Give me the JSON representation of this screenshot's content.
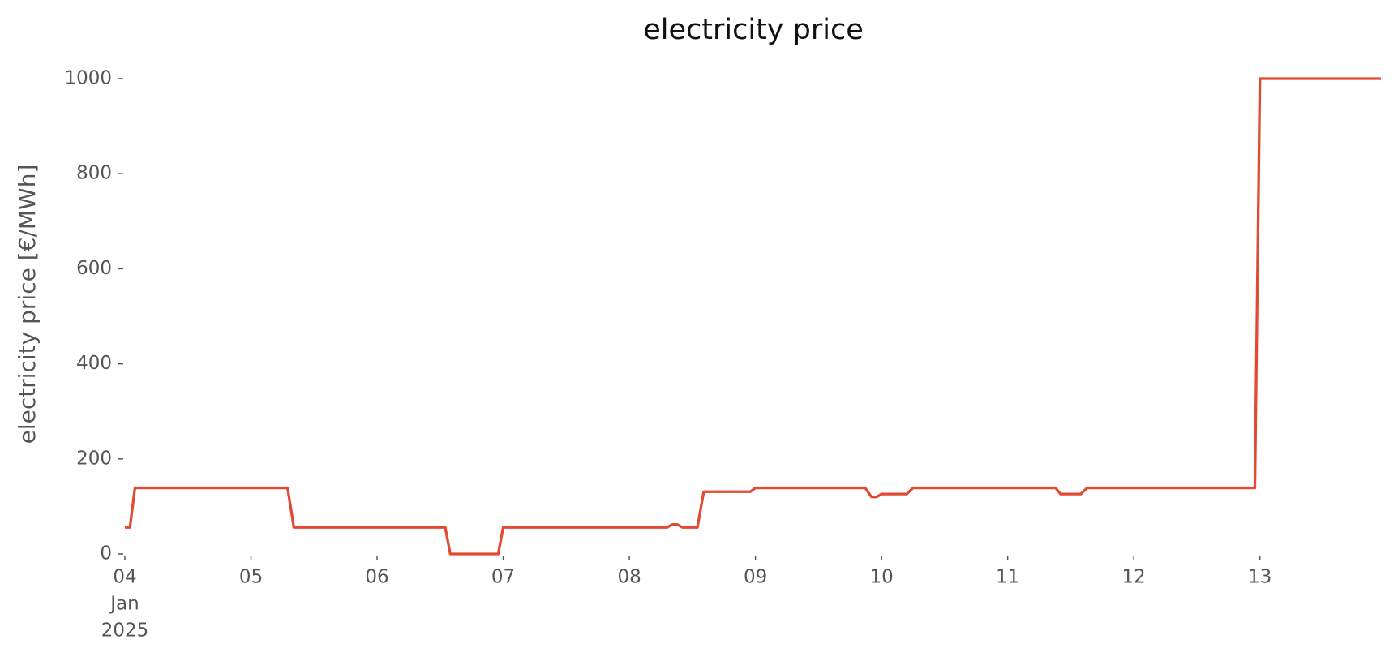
{
  "chart_data": {
    "type": "line",
    "title": "electricity price",
    "ylabel": "electricity price [€/MWh]",
    "x": [
      4.0,
      4.04,
      4.08,
      5.29,
      5.34,
      6.54,
      6.58,
      6.96,
      7.0,
      8.3,
      8.34,
      8.38,
      8.42,
      8.54,
      8.59,
      8.96,
      9.0,
      9.87,
      9.92,
      9.96,
      10.0,
      10.2,
      10.25,
      11.38,
      11.42,
      11.58,
      11.63,
      12.96,
      13.0,
      13.96
    ],
    "series": [
      {
        "name": "electricity price",
        "color": "#e24a33",
        "values": [
          56,
          56,
          139,
          139,
          56,
          56,
          0,
          0,
          56,
          56,
          62,
          62,
          56,
          56,
          131,
          131,
          139,
          139,
          120,
          120,
          126,
          126,
          139,
          139,
          126,
          126,
          139,
          139,
          1000,
          1000
        ]
      }
    ],
    "xlim": [
      4.0,
      13.96
    ],
    "ylim": [
      0,
      1000
    ],
    "xticks": [
      {
        "value": 4,
        "label": "04"
      },
      {
        "value": 5,
        "label": "05"
      },
      {
        "value": 6,
        "label": "06"
      },
      {
        "value": 7,
        "label": "07"
      },
      {
        "value": 8,
        "label": "08"
      },
      {
        "value": 9,
        "label": "09"
      },
      {
        "value": 10,
        "label": "10"
      },
      {
        "value": 11,
        "label": "11"
      },
      {
        "value": 12,
        "label": "12"
      },
      {
        "value": 13,
        "label": "13"
      }
    ],
    "xtick_sublabels": [
      "Jan",
      "2025"
    ],
    "yticks": [
      0,
      200,
      400,
      600,
      800,
      1000
    ],
    "grid": false
  }
}
